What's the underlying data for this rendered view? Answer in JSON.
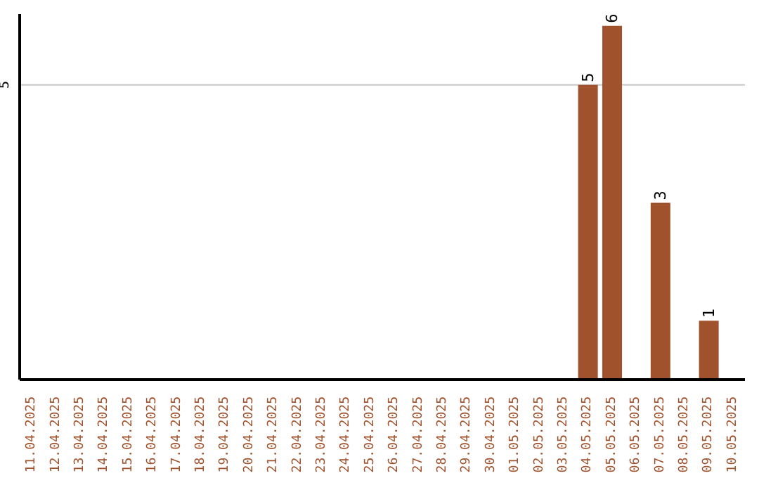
{
  "chart_data": {
    "type": "bar",
    "categories": [
      "11.04.2025",
      "12.04.2025",
      "13.04.2025",
      "14.04.2025",
      "15.04.2025",
      "16.04.2025",
      "17.04.2025",
      "18.04.2025",
      "19.04.2025",
      "20.04.2025",
      "21.04.2025",
      "22.04.2025",
      "23.04.2025",
      "24.04.2025",
      "25.04.2025",
      "26.04.2025",
      "27.04.2025",
      "28.04.2025",
      "29.04.2025",
      "30.04.2025",
      "01.05.2025",
      "02.05.2025",
      "03.05.2025",
      "04.05.2025",
      "05.05.2025",
      "06.05.2025",
      "07.05.2025",
      "08.05.2025",
      "09.05.2025",
      "10.05.2025"
    ],
    "values": [
      null,
      null,
      null,
      null,
      null,
      null,
      null,
      null,
      null,
      null,
      null,
      null,
      null,
      null,
      null,
      null,
      null,
      null,
      null,
      null,
      null,
      null,
      null,
      5,
      6,
      null,
      3,
      null,
      1,
      null
    ],
    "color": "#a0522d",
    "ylim": [
      0,
      6.2
    ],
    "yticks": [
      5
    ],
    "grid": "y",
    "data_labels": true
  }
}
